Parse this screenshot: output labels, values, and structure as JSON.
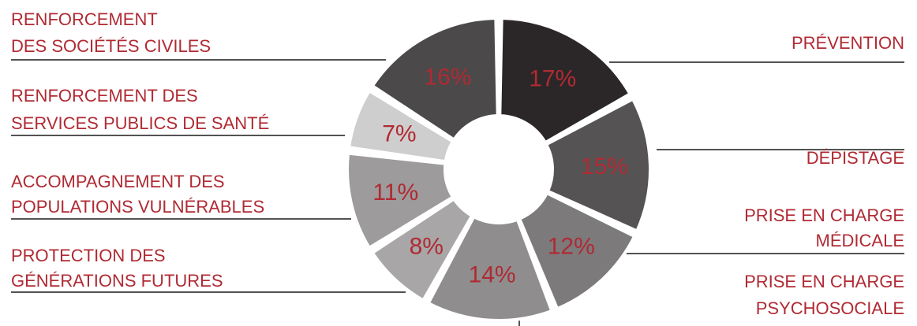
{
  "chart_data": {
    "type": "pie",
    "donut": true,
    "categories": [
      "PRÉVENTION",
      "DÉPISTAGE",
      "PRISE EN CHARGE MÉDICALE",
      "PRISE EN CHARGE PSYCHOSOCIALE",
      "PROTECTION DES GÉNÉRATIONS FUTURES",
      "ACCOMPAGNEMENT DES POPULATIONS VULNÉRABLES",
      "RENFORCEMENT DES SERVICES PUBLICS DE SANTÉ",
      "RENFORCEMENT DES SOCIÉTÉS CIVILES"
    ],
    "values": [
      17,
      15,
      12,
      14,
      8,
      11,
      7,
      16
    ],
    "value_labels": [
      "17%",
      "15%",
      "12%",
      "14%",
      "8%",
      "11%",
      "7%",
      "16%"
    ],
    "label_lines": [
      [
        "PRÉVENTION"
      ],
      [
        "DÉPISTAGE"
      ],
      [
        "PRISE EN CHARGE",
        "MÉDICALE"
      ],
      [
        "PRISE EN CHARGE",
        "PSYCHOSOCIALE"
      ],
      [
        "PROTECTION DES",
        "GÉNÉRATIONS FUTURES"
      ],
      [
        "ACCOMPAGNEMENT DES",
        "POPULATIONS VULNÉRABLES"
      ],
      [
        "RENFORCEMENT DES",
        "SERVICES PUBLICS DE SANTÉ"
      ],
      [
        "RENFORCEMENT",
        "DES SOCIÉTÉS CIVILES"
      ]
    ],
    "colors": [
      "#2b2728",
      "#555354",
      "#7c7a7b",
      "#8f8d8e",
      "#a8a6a7",
      "#9d9b9c",
      "#cfcecf",
      "#4b494a"
    ],
    "value_label_color": "#b02a33",
    "category_label_color": "#b02a33",
    "leader_line_color": "#1a1a1a",
    "legend": "none",
    "grid": false
  }
}
